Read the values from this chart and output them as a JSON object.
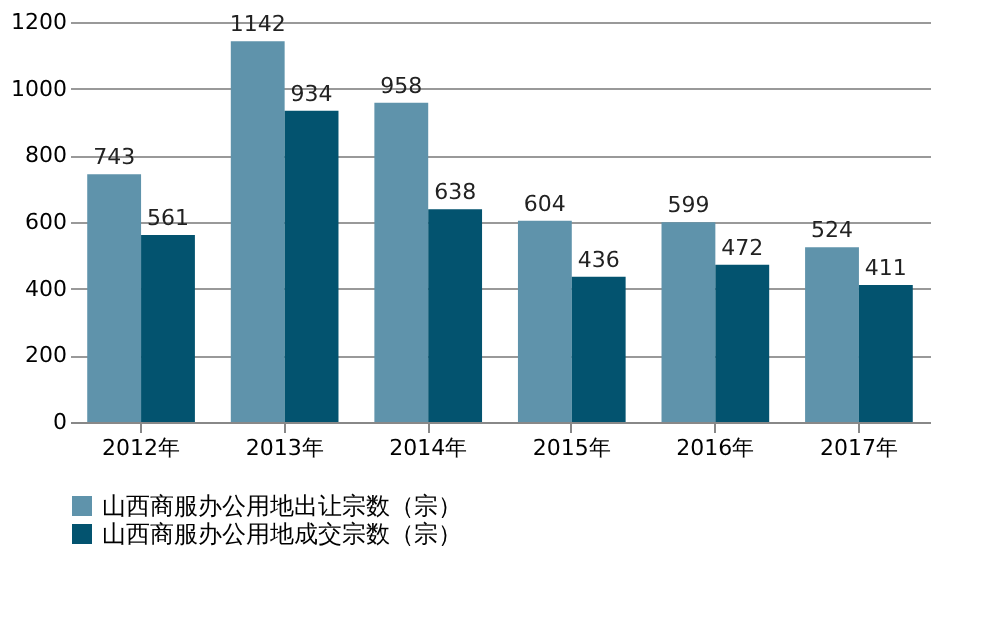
{
  "chart_data": {
    "type": "bar",
    "categories": [
      "2012年",
      "2013年",
      "2014年",
      "2015年",
      "2016年",
      "2017年"
    ],
    "series": [
      {
        "name": "山西商服办公用地出让宗数（宗）",
        "color": "#5f93ab",
        "values": [
          743,
          1142,
          958,
          604,
          599,
          524
        ]
      },
      {
        "name": "山西商服办公用地成交宗数（宗）",
        "color": "#03536f",
        "values": [
          561,
          934,
          638,
          436,
          472,
          411
        ]
      }
    ],
    "ylim": [
      0,
      1200
    ],
    "yticks": [
      0,
      200,
      400,
      600,
      800,
      1000,
      1200
    ],
    "grid": "y",
    "legend": "bottom",
    "data_labels": true
  }
}
